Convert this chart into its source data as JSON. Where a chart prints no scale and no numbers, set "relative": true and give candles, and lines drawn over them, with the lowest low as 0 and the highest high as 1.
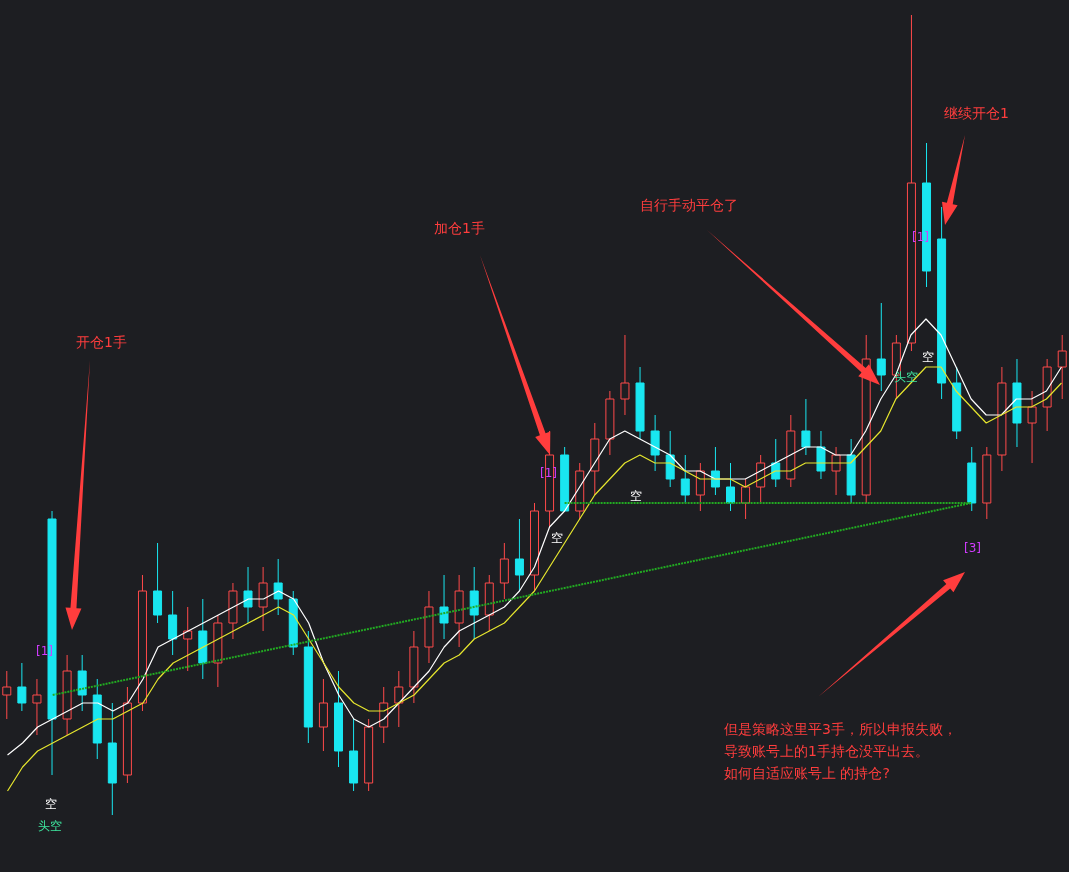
{
  "chart_data": {
    "type": "candlestick",
    "relative": true,
    "categories": [
      null,
      null,
      null,
      null,
      null,
      null,
      null,
      null,
      null,
      null,
      null,
      null,
      null,
      null,
      null,
      null,
      null,
      null,
      null,
      null,
      null,
      null,
      null,
      null,
      null,
      null,
      null,
      null,
      null,
      null,
      null,
      null,
      null,
      null,
      null,
      null,
      null,
      null,
      null,
      null,
      null,
      null,
      null,
      null,
      null,
      null,
      null,
      null,
      null,
      null,
      null,
      null,
      null,
      null,
      null,
      null,
      null,
      null,
      null,
      null,
      null,
      null,
      null,
      null,
      null,
      null,
      null,
      null,
      null,
      null,
      null
    ],
    "ohlc": [
      [
        0.15,
        0.18,
        0.12,
        0.16
      ],
      [
        0.16,
        0.19,
        0.13,
        0.14
      ],
      [
        0.14,
        0.17,
        0.1,
        0.15
      ],
      [
        0.37,
        0.38,
        0.05,
        0.12
      ],
      [
        0.12,
        0.2,
        0.1,
        0.18
      ],
      [
        0.18,
        0.2,
        0.13,
        0.15
      ],
      [
        0.15,
        0.17,
        0.07,
        0.09
      ],
      [
        0.09,
        0.14,
        0.0,
        0.04
      ],
      [
        0.05,
        0.16,
        0.04,
        0.14
      ],
      [
        0.14,
        0.3,
        0.13,
        0.28
      ],
      [
        0.28,
        0.34,
        0.24,
        0.25
      ],
      [
        0.25,
        0.28,
        0.2,
        0.22
      ],
      [
        0.22,
        0.26,
        0.18,
        0.23
      ],
      [
        0.23,
        0.27,
        0.17,
        0.19
      ],
      [
        0.19,
        0.25,
        0.16,
        0.24
      ],
      [
        0.24,
        0.29,
        0.22,
        0.28
      ],
      [
        0.28,
        0.31,
        0.24,
        0.26
      ],
      [
        0.26,
        0.31,
        0.23,
        0.29
      ],
      [
        0.29,
        0.32,
        0.25,
        0.27
      ],
      [
        0.27,
        0.28,
        0.2,
        0.21
      ],
      [
        0.21,
        0.23,
        0.09,
        0.11
      ],
      [
        0.11,
        0.17,
        0.08,
        0.14
      ],
      [
        0.14,
        0.18,
        0.06,
        0.08
      ],
      [
        0.08,
        0.12,
        0.03,
        0.04
      ],
      [
        0.04,
        0.12,
        0.03,
        0.11
      ],
      [
        0.11,
        0.16,
        0.09,
        0.14
      ],
      [
        0.14,
        0.18,
        0.11,
        0.16
      ],
      [
        0.16,
        0.23,
        0.14,
        0.21
      ],
      [
        0.21,
        0.28,
        0.19,
        0.26
      ],
      [
        0.26,
        0.3,
        0.22,
        0.24
      ],
      [
        0.24,
        0.3,
        0.21,
        0.28
      ],
      [
        0.28,
        0.31,
        0.22,
        0.25
      ],
      [
        0.25,
        0.3,
        0.23,
        0.29
      ],
      [
        0.29,
        0.34,
        0.27,
        0.32
      ],
      [
        0.32,
        0.37,
        0.28,
        0.3
      ],
      [
        0.3,
        0.39,
        0.28,
        0.38
      ],
      [
        0.38,
        0.48,
        0.36,
        0.45
      ],
      [
        0.45,
        0.46,
        0.38,
        0.38
      ],
      [
        0.38,
        0.44,
        0.37,
        0.43
      ],
      [
        0.43,
        0.49,
        0.4,
        0.47
      ],
      [
        0.47,
        0.53,
        0.45,
        0.52
      ],
      [
        0.52,
        0.6,
        0.5,
        0.54
      ],
      [
        0.54,
        0.56,
        0.47,
        0.48
      ],
      [
        0.48,
        0.5,
        0.43,
        0.45
      ],
      [
        0.45,
        0.48,
        0.41,
        0.42
      ],
      [
        0.42,
        0.45,
        0.39,
        0.4
      ],
      [
        0.4,
        0.44,
        0.38,
        0.43
      ],
      [
        0.43,
        0.46,
        0.4,
        0.41
      ],
      [
        0.41,
        0.44,
        0.38,
        0.39
      ],
      [
        0.39,
        0.42,
        0.37,
        0.41
      ],
      [
        0.41,
        0.45,
        0.39,
        0.44
      ],
      [
        0.44,
        0.47,
        0.41,
        0.42
      ],
      [
        0.42,
        0.5,
        0.41,
        0.48
      ],
      [
        0.48,
        0.52,
        0.45,
        0.46
      ],
      [
        0.46,
        0.48,
        0.42,
        0.43
      ],
      [
        0.43,
        0.46,
        0.4,
        0.45
      ],
      [
        0.45,
        0.47,
        0.39,
        0.4
      ],
      [
        0.4,
        0.6,
        0.39,
        0.57
      ],
      [
        0.57,
        0.64,
        0.53,
        0.55
      ],
      [
        0.55,
        0.6,
        0.52,
        0.59
      ],
      [
        0.59,
        1.0,
        0.58,
        0.79
      ],
      [
        0.79,
        0.84,
        0.66,
        0.68
      ],
      [
        0.72,
        0.76,
        0.52,
        0.54
      ],
      [
        0.54,
        0.56,
        0.47,
        0.48
      ],
      [
        0.44,
        0.46,
        0.38,
        0.39
      ],
      [
        0.39,
        0.46,
        0.37,
        0.45
      ],
      [
        0.45,
        0.56,
        0.43,
        0.54
      ],
      [
        0.54,
        0.57,
        0.46,
        0.49
      ],
      [
        0.49,
        0.53,
        0.44,
        0.51
      ],
      [
        0.51,
        0.57,
        0.48,
        0.56
      ],
      [
        0.56,
        0.6,
        0.52,
        0.58
      ]
    ],
    "colors": [
      "#ff4a4a",
      "#19e6f0",
      "#ff4a4a",
      "#19e6f0",
      "#ff4a4a",
      "#19e6f0",
      "#19e6f0",
      "#19e6f0",
      "#ff4a4a",
      "#ff4a4a",
      "#19e6f0",
      "#19e6f0",
      "#ff4a4a",
      "#19e6f0",
      "#ff4a4a",
      "#ff4a4a",
      "#19e6f0",
      "#ff4a4a",
      "#19e6f0",
      "#19e6f0",
      "#19e6f0",
      "#ff4a4a",
      "#19e6f0",
      "#19e6f0",
      "#ff4a4a",
      "#ff4a4a",
      "#ff4a4a",
      "#ff4a4a",
      "#ff4a4a",
      "#19e6f0",
      "#ff4a4a",
      "#19e6f0",
      "#ff4a4a",
      "#ff4a4a",
      "#19e6f0",
      "#ff4a4a",
      "#ff4a4a",
      "#19e6f0",
      "#ff4a4a",
      "#ff4a4a",
      "#ff4a4a",
      "#ff4a4a",
      "#19e6f0",
      "#19e6f0",
      "#19e6f0",
      "#19e6f0",
      "#ff4a4a",
      "#19e6f0",
      "#19e6f0",
      "#ff4a4a",
      "#ff4a4a",
      "#19e6f0",
      "#ff4a4a",
      "#19e6f0",
      "#19e6f0",
      "#ff4a4a",
      "#19e6f0",
      "#ff4a4a",
      "#19e6f0",
      "#ff4a4a",
      "#ff4a4a",
      "#19e6f0",
      "#19e6f0",
      "#19e6f0",
      "#19e6f0",
      "#ff4a4a",
      "#ff4a4a",
      "#19e6f0",
      "#ff4a4a",
      "#ff4a4a",
      "#ff4a4a"
    ],
    "series": [
      {
        "type": "line",
        "color": "#ffffff",
        "values": [
          0.075,
          0.09,
          0.11,
          0.12,
          0.13,
          0.14,
          0.14,
          0.13,
          0.14,
          0.17,
          0.21,
          0.22,
          0.23,
          0.24,
          0.25,
          0.26,
          0.27,
          0.27,
          0.28,
          0.27,
          0.24,
          0.19,
          0.15,
          0.12,
          0.11,
          0.12,
          0.14,
          0.16,
          0.18,
          0.21,
          0.23,
          0.24,
          0.25,
          0.26,
          0.28,
          0.31,
          0.36,
          0.38,
          0.41,
          0.44,
          0.47,
          0.48,
          0.47,
          0.46,
          0.45,
          0.43,
          0.43,
          0.42,
          0.42,
          0.42,
          0.43,
          0.44,
          0.45,
          0.46,
          0.46,
          0.45,
          0.45,
          0.48,
          0.52,
          0.55,
          0.6,
          0.62,
          0.6,
          0.56,
          0.52,
          0.5,
          0.5,
          0.52,
          0.52,
          0.53,
          0.56
        ]
      },
      {
        "type": "line",
        "color": "#e6e62e",
        "values": [
          0.03,
          0.06,
          0.08,
          0.09,
          0.1,
          0.11,
          0.12,
          0.12,
          0.13,
          0.14,
          0.17,
          0.19,
          0.2,
          0.21,
          0.22,
          0.23,
          0.24,
          0.25,
          0.26,
          0.25,
          0.22,
          0.19,
          0.16,
          0.14,
          0.13,
          0.13,
          0.14,
          0.15,
          0.17,
          0.19,
          0.2,
          0.22,
          0.23,
          0.24,
          0.26,
          0.28,
          0.31,
          0.34,
          0.37,
          0.4,
          0.42,
          0.44,
          0.45,
          0.44,
          0.44,
          0.43,
          0.42,
          0.42,
          0.42,
          0.41,
          0.42,
          0.43,
          0.43,
          0.44,
          0.44,
          0.44,
          0.44,
          0.46,
          0.48,
          0.52,
          0.54,
          0.56,
          0.56,
          0.53,
          0.51,
          0.49,
          0.5,
          0.51,
          0.51,
          0.52,
          0.54
        ]
      },
      {
        "type": "line",
        "color": "#22aa22",
        "line_style": "dotted",
        "values": [
          null,
          null,
          null,
          0.15,
          null,
          null,
          null,
          null,
          null,
          null,
          null,
          null,
          null,
          null,
          null,
          null,
          null,
          null,
          null,
          null,
          null,
          null,
          null,
          null,
          null,
          null,
          null,
          null,
          null,
          null,
          null,
          null,
          null,
          null,
          null,
          null,
          null,
          null,
          null,
          null,
          null,
          null,
          null,
          null,
          null,
          null,
          null,
          null,
          null,
          null,
          null,
          null,
          null,
          null,
          null,
          null,
          null,
          null,
          null,
          null,
          null,
          null,
          null,
          null,
          0.39,
          null,
          null,
          null,
          null,
          null,
          null
        ]
      },
      {
        "type": "line",
        "color": "#22aa22",
        "line_style": "dotted",
        "values": [
          null,
          null,
          null,
          null,
          null,
          null,
          null,
          null,
          null,
          null,
          null,
          null,
          null,
          null,
          null,
          null,
          null,
          null,
          null,
          null,
          null,
          null,
          null,
          null,
          null,
          null,
          null,
          null,
          null,
          null,
          null,
          null,
          null,
          null,
          null,
          null,
          null,
          0.39,
          null,
          null,
          null,
          null,
          null,
          null,
          null,
          null,
          null,
          null,
          null,
          null,
          null,
          null,
          null,
          null,
          null,
          null,
          null,
          null,
          null,
          null,
          null,
          null,
          null,
          null,
          0.39,
          null,
          null,
          null,
          null,
          null,
          null
        ]
      }
    ],
    "annotations": [
      "开仓1手",
      "加仓1手",
      "自行手动平仓了",
      "继续开仓1",
      "但是策略这里平3手，所以申报失败，",
      "导致账号上的1手持仓没平出去。",
      "如何自适应账号上 的持仓?",
      "[1]",
      "[1]",
      "[1]",
      "[3]",
      "空",
      "头空",
      "空",
      "空",
      "空",
      "头空"
    ]
  }
}
